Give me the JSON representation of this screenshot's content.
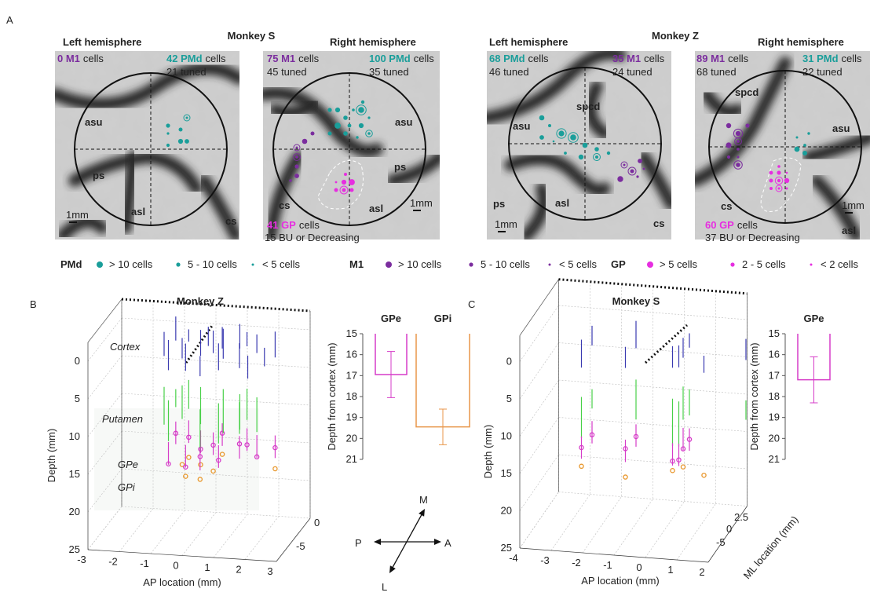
{
  "figure": {
    "panel_labels": {
      "a": "A",
      "b": "B",
      "c": "C"
    },
    "panel_a": {
      "monkeys": [
        "Monkey S",
        "Monkey Z"
      ],
      "images": [
        {
          "title": "Left hemisphere",
          "left": {
            "label": "0 M1",
            "unit": "cells"
          },
          "right": {
            "label": "42 PMd",
            "unit": "cells",
            "note": "21 tuned"
          },
          "landmarks": [
            "asu",
            "ps",
            "asl",
            "cs"
          ],
          "scale": "1mm"
        },
        {
          "title": "Right hemisphere",
          "left": {
            "label": "75 M1",
            "unit": "cells",
            "note": "45 tuned"
          },
          "right": {
            "label": "100 PMd",
            "unit": "cells",
            "note": "35 tuned"
          },
          "gp": {
            "label": "41 GP",
            "unit": "cells",
            "note": "15 BU or Decreasing"
          },
          "landmarks": [
            "asu",
            "ps",
            "cs",
            "asl"
          ],
          "scale": "1mm"
        },
        {
          "title": "Left hemisphere",
          "left": {
            "label": "68 PMd",
            "unit": "cells",
            "note": "46 tuned"
          },
          "right": {
            "label": "35 M1",
            "unit": "cells",
            "note": "24 tuned"
          },
          "landmarks": [
            "spcd",
            "asu",
            "ps",
            "asl",
            "cs"
          ],
          "scale": "1mm"
        },
        {
          "title": "Right hemisphere",
          "left": {
            "label": "89 M1",
            "unit": "cells",
            "note": "68 tuned"
          },
          "right": {
            "label": "31 PMd",
            "unit": "cells",
            "note": "22 tuned"
          },
          "gp": {
            "label": "60 GP",
            "unit": "cells",
            "note": "37 BU or Decreasing"
          },
          "landmarks": [
            "spcd",
            "asu",
            "cs",
            "asl"
          ],
          "scale": "1mm"
        }
      ],
      "legend": [
        {
          "name": "PMd",
          "color": "#1a9e9a",
          "items": [
            "> 10 cells",
            "5 - 10 cells",
            "< 5 cells"
          ]
        },
        {
          "name": "M1",
          "color": "#7b2d9e",
          "items": [
            "> 10 cells",
            "5 - 10 cells",
            "< 5 cells"
          ]
        },
        {
          "name": "GP",
          "color": "#e62ee0",
          "items": [
            "> 5 cells",
            "2 - 5 cells",
            "< 2 cells"
          ]
        }
      ]
    },
    "panel_b": {
      "title": "Monkey Z",
      "zlabel": "Depth (mm)",
      "xlabel": "AP location (mm)",
      "depth_ticks": [
        0,
        5,
        10,
        15,
        20,
        25
      ],
      "ap_ticks": [
        -3,
        -2,
        -1,
        0,
        1,
        2,
        3
      ],
      "ml_ticks": [
        0,
        -5
      ],
      "structures": [
        "Cortex",
        "Putamen",
        "GPe",
        "GPi"
      ],
      "compass": {
        "p": "P",
        "a": "A",
        "m": "M",
        "l": "L"
      }
    },
    "panel_c": {
      "title": "Monkey S",
      "zlabel": "Depth (mm)",
      "xlabel": "AP location (mm)",
      "ylabel": "ML location (mm)",
      "depth_ticks": [
        0,
        5,
        10,
        15,
        20,
        25
      ],
      "ap_ticks": [
        -4,
        -3,
        -2,
        -1,
        0,
        1,
        2
      ],
      "ml_ticks": [
        2.5,
        0,
        -5
      ]
    }
  },
  "chart_data": [
    {
      "type": "bar",
      "ylabel": "Depth from cortex (mm)",
      "ylim": [
        15,
        21
      ],
      "inverted": true,
      "yticks": [
        15,
        16,
        17,
        18,
        19,
        20,
        21
      ],
      "series": [
        {
          "name": "GPe",
          "color": "#d63cc8",
          "values": [
            16.95
          ],
          "errors": [
            1.1
          ]
        },
        {
          "name": "GPi",
          "color": "#e8964a",
          "values": [
            19.45
          ],
          "errors": [
            0.85
          ]
        }
      ]
    },
    {
      "type": "bar",
      "ylabel": "Depth from cortex (mm)",
      "ylim": [
        15,
        21
      ],
      "inverted": true,
      "yticks": [
        15,
        16,
        17,
        18,
        19,
        20,
        21
      ],
      "series": [
        {
          "name": "GPe",
          "color": "#d63cc8",
          "values": [
            17.2
          ],
          "errors": [
            1.1
          ]
        }
      ]
    }
  ]
}
